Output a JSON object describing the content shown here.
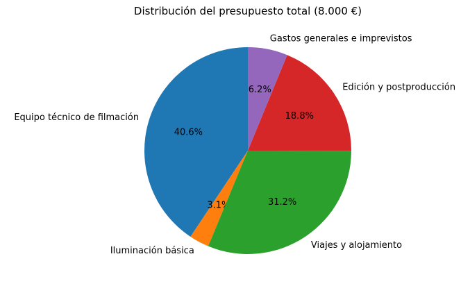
{
  "title": "Distribución del presupuesto total (8.000 €)",
  "background_color": "#ffffff",
  "chart_data": {
    "type": "pie",
    "title": "Distribución del presupuesto total (8.000 €)",
    "total_label": "8.000 €",
    "start_angle": 90,
    "counterclockwise": true,
    "legend": "none",
    "text_color": "#000000",
    "slices": [
      {
        "label": "Equipo técnico de filmación",
        "pct": 40.6,
        "pct_label": "40.6%",
        "color": "#1f77b4"
      },
      {
        "label": "Iluminación básica",
        "pct": 3.1,
        "pct_label": "3.1%",
        "color": "#ff7f0e"
      },
      {
        "label": "Viajes y alojamiento",
        "pct": 31.2,
        "pct_label": "31.2%",
        "color": "#2ca02c"
      },
      {
        "label": "Edición y postproducción",
        "pct": 18.8,
        "pct_label": "18.8%",
        "color": "#d62728"
      },
      {
        "label": "Gastos generales e imprevistos",
        "pct": 6.2,
        "pct_label": "6.2%",
        "color": "#9467bd"
      }
    ]
  }
}
